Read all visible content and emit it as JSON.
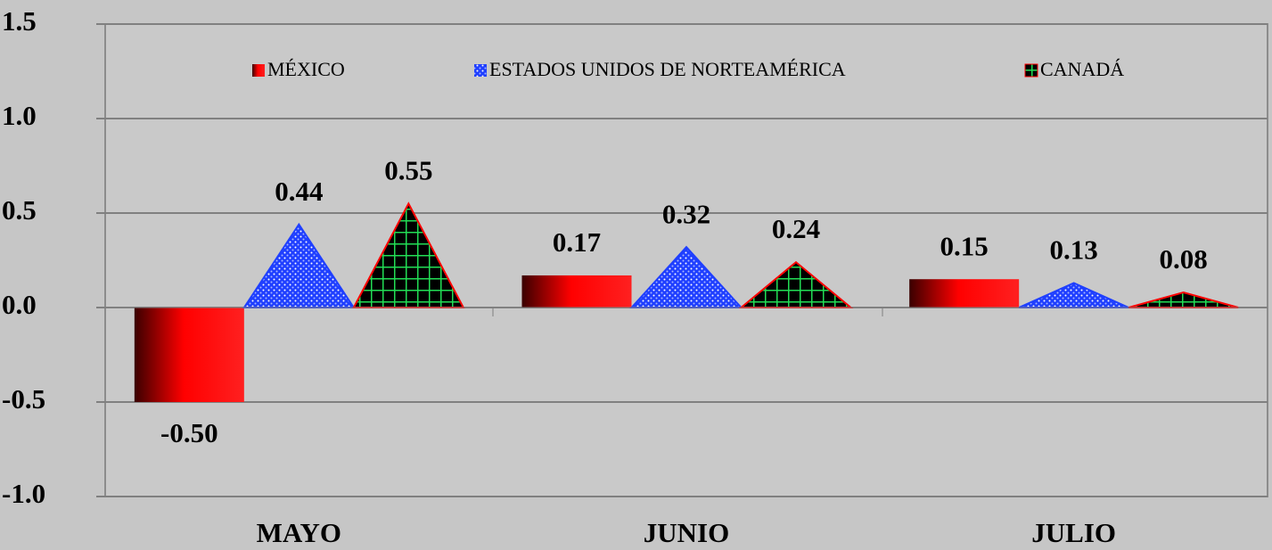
{
  "chart_data": {
    "type": "bar",
    "categories": [
      "MAYO",
      "JUNIO",
      "JULIO"
    ],
    "series": [
      {
        "name": "MÉXICO",
        "color": "#ff0000",
        "values": [
          -0.5,
          0.17,
          0.15
        ],
        "value_labels": [
          "-0.50",
          "0.17",
          "0.15"
        ]
      },
      {
        "name": "ESTADOS UNIDOS DE NORTEAMÉRICA",
        "color": "#1f3fff",
        "values": [
          0.44,
          0.32,
          0.13
        ],
        "value_labels": [
          "0.44",
          "0.32",
          "0.13"
        ]
      },
      {
        "name": "CANADÁ",
        "color": "#000000",
        "values": [
          0.55,
          0.24,
          0.08
        ],
        "value_labels": [
          "0.55",
          "0.24",
          "0.08"
        ]
      }
    ],
    "ylim": [
      -1.0,
      1.5
    ],
    "yticks": [
      {
        "value": -1.0,
        "label": "-1.0"
      },
      -0.5,
      {
        "value": 0.0,
        "label": "0.0"
      },
      0.5,
      {
        "value": 1.0,
        "label": "1.0"
      },
      1.5
    ],
    "grid": true
  }
}
